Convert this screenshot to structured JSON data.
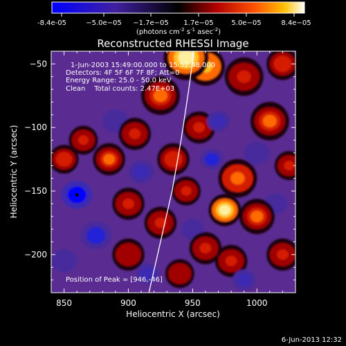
{
  "colorbar": {
    "ticks": [
      "-8.4e-05",
      "−5.0e−05",
      "−1.7e−05",
      "1.7e−05",
      "5.0e−05",
      "8.4e−05"
    ],
    "units_main": "(photons cm",
    "units_sup1": "-2",
    "units_mid": " s",
    "units_sup2": "-1",
    "units_end": " asec",
    "units_sup3": "-2",
    "units_close": ")"
  },
  "chart_data": {
    "type": "heatmap",
    "title": "Reconstructed RHESSI Image",
    "xlabel": "Heliocentric X (arcsec)",
    "ylabel": "Heliocentric Y (arcsec)",
    "xlim": [
      840,
      1030
    ],
    "ylim": [
      -230,
      -40
    ],
    "xticks": [
      850,
      900,
      950,
      1000
    ],
    "xtick_labels": [
      "850",
      "900",
      "950",
      "1000"
    ],
    "yticks": [
      -50,
      -100,
      -150,
      -200
    ],
    "ytick_labels": [
      "−50",
      "−100",
      "−150",
      "−200"
    ],
    "value_range": [
      -8.4e-05,
      8.4e-05
    ],
    "peak_position": [
      946,
      -46
    ],
    "marker_position": [
      860,
      -153
    ],
    "limb_curve": [
      [
        916,
        -230
      ],
      [
        925,
        -190
      ],
      [
        934,
        -150
      ],
      [
        941,
        -110
      ],
      [
        947,
        -70
      ],
      [
        951,
        -40
      ]
    ],
    "blobs": [
      {
        "x": 945,
        "y": -45,
        "v": 1.0,
        "r": 14
      },
      {
        "x": 960,
        "y": -52,
        "v": 0.8,
        "r": 12
      },
      {
        "x": 990,
        "y": -60,
        "v": 0.45,
        "r": 12
      },
      {
        "x": 1020,
        "y": -50,
        "v": 0.5,
        "r": 10
      },
      {
        "x": 1010,
        "y": -95,
        "v": 0.55,
        "r": 12
      },
      {
        "x": 985,
        "y": -140,
        "v": 0.6,
        "r": 12
      },
      {
        "x": 1000,
        "y": -170,
        "v": 0.55,
        "r": 11
      },
      {
        "x": 975,
        "y": -165,
        "v": 0.95,
        "r": 10
      },
      {
        "x": 1020,
        "y": -200,
        "v": 0.45,
        "r": 10
      },
      {
        "x": 980,
        "y": -205,
        "v": 0.4,
        "r": 10
      },
      {
        "x": 925,
        "y": -75,
        "v": 0.55,
        "r": 12
      },
      {
        "x": 905,
        "y": -105,
        "v": 0.45,
        "r": 10
      },
      {
        "x": 885,
        "y": -125,
        "v": 0.55,
        "r": 10
      },
      {
        "x": 935,
        "y": -125,
        "v": 0.5,
        "r": 10
      },
      {
        "x": 955,
        "y": -100,
        "v": 0.4,
        "r": 10
      },
      {
        "x": 850,
        "y": -125,
        "v": 0.5,
        "r": 9
      },
      {
        "x": 865,
        "y": -110,
        "v": 0.4,
        "r": 9
      },
      {
        "x": 900,
        "y": -160,
        "v": 0.45,
        "r": 10
      },
      {
        "x": 925,
        "y": -175,
        "v": 0.45,
        "r": 10
      },
      {
        "x": 945,
        "y": -150,
        "v": 0.4,
        "r": 9
      },
      {
        "x": 960,
        "y": -195,
        "v": 0.45,
        "r": 10
      },
      {
        "x": 900,
        "y": -200,
        "v": 0.35,
        "r": 10
      },
      {
        "x": 1025,
        "y": -130,
        "v": 0.45,
        "r": 9
      },
      {
        "x": 940,
        "y": -215,
        "v": 0.35,
        "r": 9
      },
      {
        "x": 860,
        "y": -153,
        "v": -0.9,
        "r": 12
      },
      {
        "x": 875,
        "y": -185,
        "v": -0.65,
        "r": 12
      },
      {
        "x": 910,
        "y": -135,
        "v": -0.55,
        "r": 10
      },
      {
        "x": 965,
        "y": -125,
        "v": -0.75,
        "r": 9
      },
      {
        "x": 970,
        "y": -95,
        "v": -0.5,
        "r": 9
      },
      {
        "x": 1000,
        "y": -120,
        "v": -0.4,
        "r": 10
      },
      {
        "x": 890,
        "y": -95,
        "v": -0.4,
        "r": 10
      },
      {
        "x": 990,
        "y": -220,
        "v": -0.55,
        "r": 9
      },
      {
        "x": 915,
        "y": -215,
        "v": -0.5,
        "r": 9
      },
      {
        "x": 850,
        "y": -205,
        "v": -0.45,
        "r": 10
      },
      {
        "x": 950,
        "y": -180,
        "v": -0.4,
        "r": 9
      },
      {
        "x": 1015,
        "y": -160,
        "v": -0.35,
        "r": 9
      }
    ]
  },
  "info": {
    "line1": "1-Jun-2003 15:49:00.000 to 15:52:48.000",
    "line2": "Detectors: 4F 5F 6F 7F 8F; Att=0",
    "line3": "Energy Range: 25.0 - 50.0 keV",
    "line4": "Clean    Total counts: 2.47E+03",
    "peak": "Position of Peak = [946,-46]"
  },
  "timestamp": "6-Jun-2013 12:32"
}
